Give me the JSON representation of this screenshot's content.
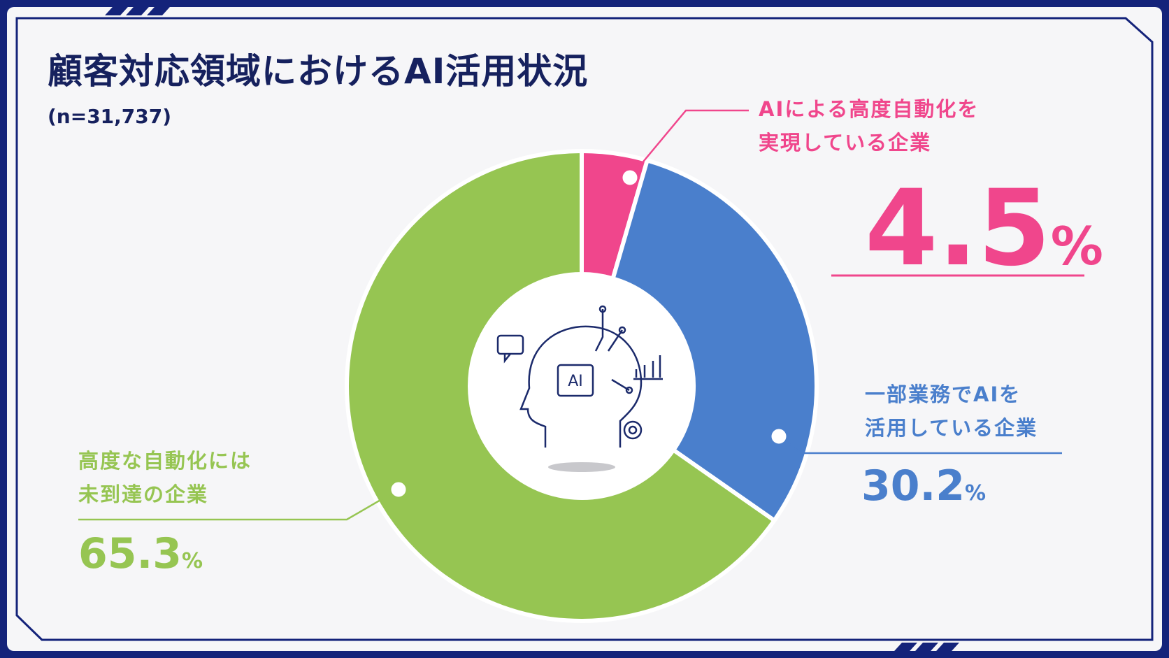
{
  "chart_data": {
    "type": "pie",
    "title": "顧客対応領域におけるAI活用状況",
    "subtitle": "(n=31,737)",
    "categories": [
      "AIによる高度自動化を\n実現している企業",
      "一部業務でAIを\n活用している企業",
      "高度な自動化には\n未到達の企業"
    ],
    "values": [
      4.5,
      30.2,
      65.3
    ],
    "value_labels": [
      "4.5%",
      "30.2%",
      "65.3%"
    ],
    "colors": [
      "#f0468c",
      "#4a7fcc",
      "#96c552"
    ]
  }
}
